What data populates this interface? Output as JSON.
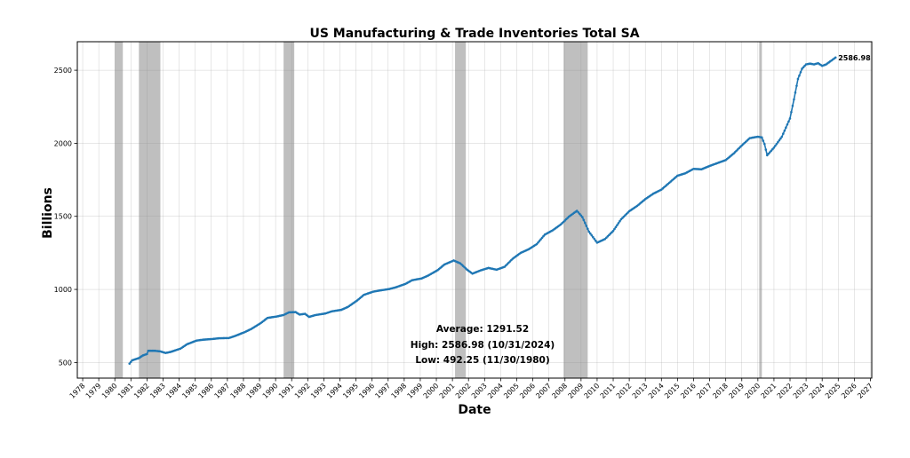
{
  "chart_data": {
    "type": "line",
    "title": "US Manufacturing & Trade Inventories Total SA",
    "xlabel": "Date",
    "ylabel": "Billions",
    "xlim": [
      "1977-09-01",
      "2027-02-01"
    ],
    "ylim": [
      393,
      2695
    ],
    "x_ticks": [
      "1978",
      "1979",
      "1980",
      "1981",
      "1982",
      "1983",
      "1984",
      "1985",
      "1986",
      "1987",
      "1988",
      "1989",
      "1990",
      "1991",
      "1992",
      "1993",
      "1994",
      "1995",
      "1996",
      "1997",
      "1998",
      "1999",
      "2000",
      "2001",
      "2002",
      "2003",
      "2004",
      "2005",
      "2006",
      "2007",
      "2008",
      "2009",
      "2010",
      "2011",
      "2012",
      "2013",
      "2014",
      "2015",
      "2016",
      "2017",
      "2018",
      "2019",
      "2020",
      "2021",
      "2022",
      "2023",
      "2024",
      "2025",
      "2026",
      "2027"
    ],
    "y_ticks": [
      500,
      1000,
      1500,
      2000,
      2500
    ],
    "grid": true,
    "line_color": "#1f77b4",
    "recession_color": "#808080",
    "recessions": [
      {
        "start": "1980-01-01",
        "end": "1980-07-01"
      },
      {
        "start": "1981-07-01",
        "end": "1982-11-01"
      },
      {
        "start": "1990-07-01",
        "end": "1991-03-01"
      },
      {
        "start": "2001-03-01",
        "end": "2001-11-01"
      },
      {
        "start": "2007-12-01",
        "end": "2009-06-01"
      },
      {
        "start": "2020-02-01",
        "end": "2020-04-01"
      }
    ],
    "series": [
      {
        "points": [
          [
            "1980-11-30",
            492.25
          ],
          [
            "1981-01-31",
            515
          ],
          [
            "1981-06-30",
            530
          ],
          [
            "1981-09-30",
            548
          ],
          [
            "1981-12-31",
            558
          ],
          [
            "1982-01-31",
            580
          ],
          [
            "1982-06-30",
            580
          ],
          [
            "1982-10-31",
            576
          ],
          [
            "1983-02-28",
            565
          ],
          [
            "1983-06-30",
            573
          ],
          [
            "1984-01-31",
            595
          ],
          [
            "1984-06-30",
            625
          ],
          [
            "1985-01-31",
            650
          ],
          [
            "1985-06-30",
            656
          ],
          [
            "1986-01-31",
            661
          ],
          [
            "1986-06-30",
            666
          ],
          [
            "1987-01-31",
            667
          ],
          [
            "1987-06-30",
            682
          ],
          [
            "1988-01-31",
            708
          ],
          [
            "1988-06-30",
            730
          ],
          [
            "1989-01-31",
            770
          ],
          [
            "1989-06-30",
            805
          ],
          [
            "1990-01-31",
            815
          ],
          [
            "1990-06-30",
            825
          ],
          [
            "1990-10-31",
            843
          ],
          [
            "1991-03-31",
            845
          ],
          [
            "1991-06-30",
            828
          ],
          [
            "1991-10-31",
            833
          ],
          [
            "1992-01-31",
            812
          ],
          [
            "1992-06-30",
            825
          ],
          [
            "1993-01-31",
            835
          ],
          [
            "1993-06-30",
            850
          ],
          [
            "1994-01-31",
            860
          ],
          [
            "1994-06-30",
            880
          ],
          [
            "1995-01-31",
            925
          ],
          [
            "1995-06-30",
            963
          ],
          [
            "1996-01-31",
            985
          ],
          [
            "1996-06-30",
            993
          ],
          [
            "1997-01-31",
            1003
          ],
          [
            "1997-06-30",
            1015
          ],
          [
            "1998-01-31",
            1038
          ],
          [
            "1998-06-30",
            1063
          ],
          [
            "1999-01-31",
            1075
          ],
          [
            "1999-06-30",
            1095
          ],
          [
            "2000-01-31",
            1132
          ],
          [
            "2000-06-30",
            1170
          ],
          [
            "2001-01-31",
            1198
          ],
          [
            "2001-06-30",
            1178
          ],
          [
            "2001-11-30",
            1135
          ],
          [
            "2002-03-31",
            1108
          ],
          [
            "2002-09-30",
            1130
          ],
          [
            "2003-03-31",
            1147
          ],
          [
            "2003-09-30",
            1135
          ],
          [
            "2004-03-31",
            1155
          ],
          [
            "2004-09-30",
            1210
          ],
          [
            "2005-03-31",
            1250
          ],
          [
            "2005-09-30",
            1275
          ],
          [
            "2006-03-31",
            1310
          ],
          [
            "2006-09-30",
            1375
          ],
          [
            "2007-03-31",
            1405
          ],
          [
            "2007-09-30",
            1445
          ],
          [
            "2008-03-31",
            1498
          ],
          [
            "2008-09-30",
            1538
          ],
          [
            "2009-01-31",
            1495
          ],
          [
            "2009-06-30",
            1395
          ],
          [
            "2009-12-31",
            1320
          ],
          [
            "2010-06-30",
            1345
          ],
          [
            "2010-12-31",
            1400
          ],
          [
            "2011-06-30",
            1480
          ],
          [
            "2011-12-31",
            1535
          ],
          [
            "2012-06-30",
            1572
          ],
          [
            "2012-12-31",
            1618
          ],
          [
            "2013-06-30",
            1655
          ],
          [
            "2013-12-31",
            1683
          ],
          [
            "2014-06-30",
            1730
          ],
          [
            "2014-12-31",
            1778
          ],
          [
            "2015-06-30",
            1795
          ],
          [
            "2015-12-31",
            1825
          ],
          [
            "2016-06-30",
            1822
          ],
          [
            "2016-12-31",
            1845
          ],
          [
            "2017-06-30",
            1865
          ],
          [
            "2017-12-31",
            1885
          ],
          [
            "2018-06-30",
            1930
          ],
          [
            "2018-12-31",
            1985
          ],
          [
            "2019-06-30",
            2035
          ],
          [
            "2019-12-31",
            2045
          ],
          [
            "2020-03-31",
            2040
          ],
          [
            "2020-05-31",
            1995
          ],
          [
            "2020-07-31",
            1918
          ],
          [
            "2020-12-31",
            1970
          ],
          [
            "2021-06-30",
            2045
          ],
          [
            "2021-12-31",
            2170
          ],
          [
            "2022-03-31",
            2300
          ],
          [
            "2022-06-30",
            2440
          ],
          [
            "2022-09-30",
            2510
          ],
          [
            "2022-12-31",
            2540
          ],
          [
            "2023-03-31",
            2545
          ],
          [
            "2023-06-30",
            2540
          ],
          [
            "2023-09-30",
            2548
          ],
          [
            "2023-12-31",
            2530
          ],
          [
            "2024-03-31",
            2540
          ],
          [
            "2024-06-30",
            2560
          ],
          [
            "2024-10-31",
            2586.98
          ]
        ]
      }
    ],
    "end_label": "2586.98",
    "stats": {
      "average": "Average: 1291.52",
      "high": "High: 2586.98 (10/31/2024)",
      "low": "Low: 492.25 (11/30/1980)"
    }
  }
}
